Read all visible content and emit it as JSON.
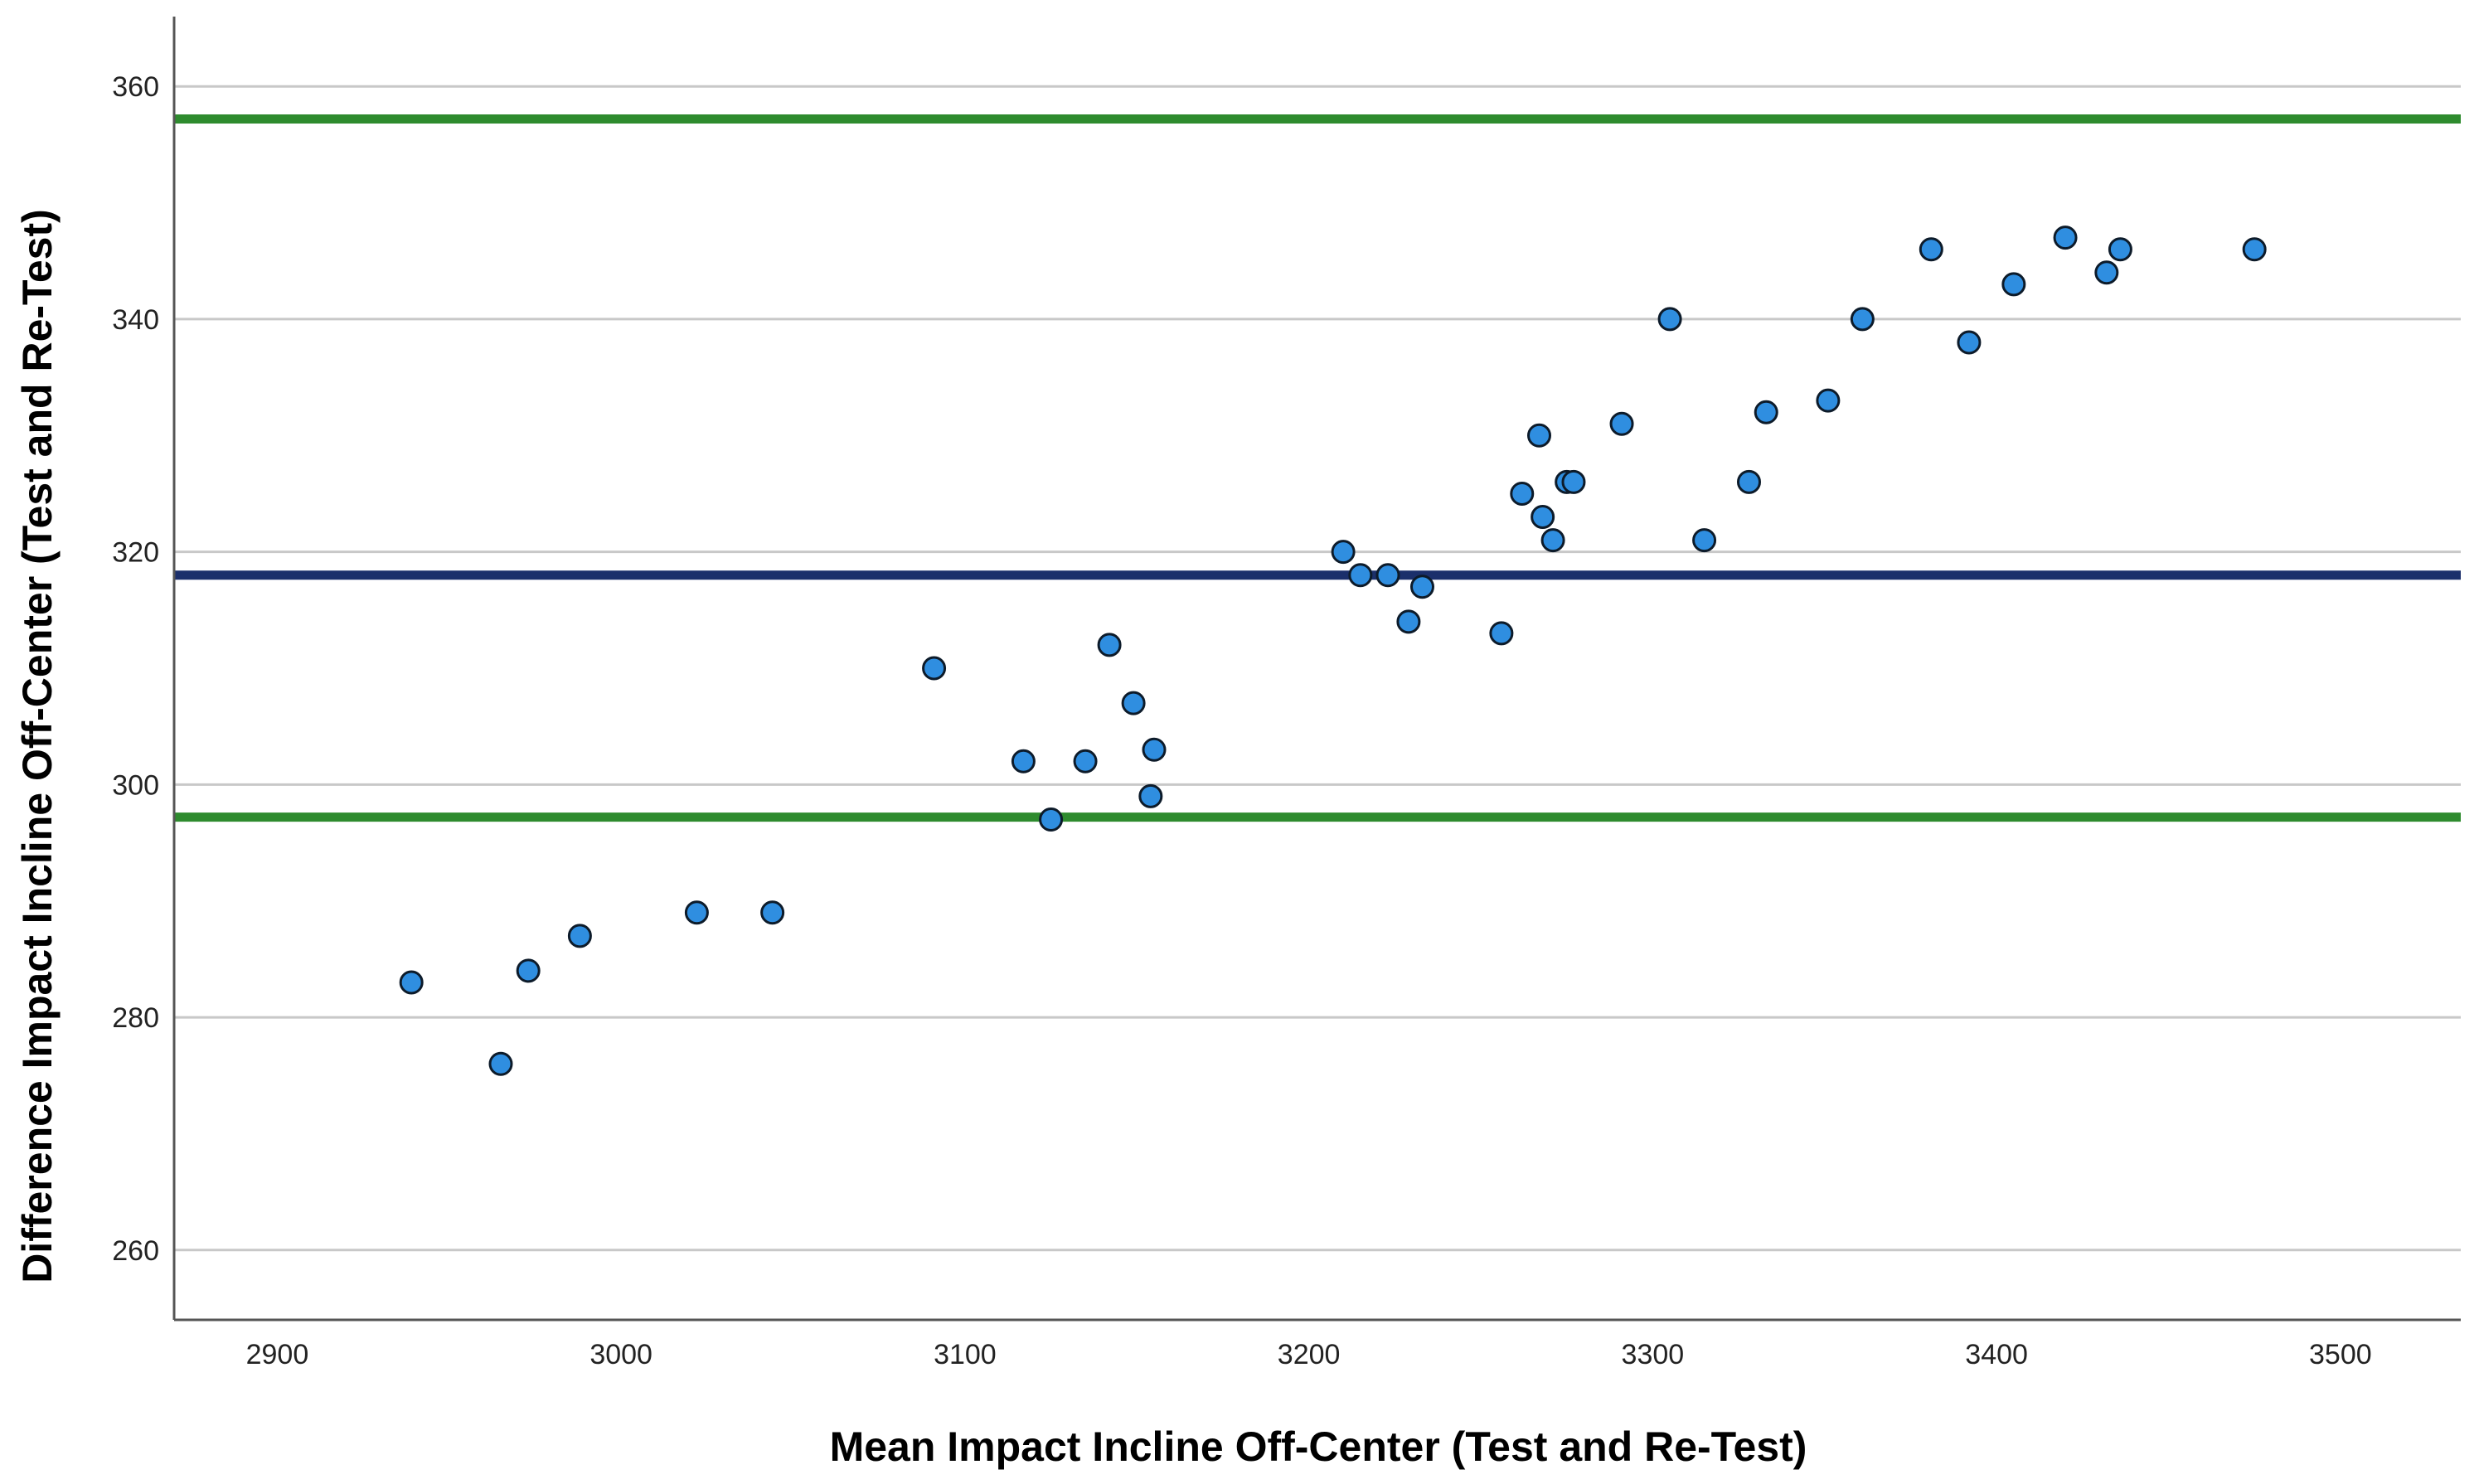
{
  "chart_data": {
    "type": "scatter",
    "title": "",
    "xlabel": "Mean Impact Incline Off-Center (Test and Re-Test)",
    "ylabel": "Difference Impact Incline Off-Center (Test and Re-Test)",
    "xlim": [
      2870,
      3535
    ],
    "ylim": [
      254,
      366
    ],
    "xticks": [
      2900,
      3000,
      3100,
      3200,
      3300,
      3400,
      3500
    ],
    "yticks": [
      260,
      280,
      300,
      320,
      340,
      360
    ],
    "grid": "horizontal",
    "colors": {
      "points": "#2f8ee0",
      "point_edge": "#0d1b2a",
      "mean_line": "#1b2f6b",
      "limit_lines": "#2e8b2e",
      "grid": "#c8c8c8",
      "axis": "#555555"
    },
    "reference_lines": [
      {
        "name": "upper-limit",
        "y": 357.2,
        "color": "#2e8b2e"
      },
      {
        "name": "mean-difference",
        "y": 318.0,
        "color": "#1b2f6b"
      },
      {
        "name": "lower-limit",
        "y": 297.2,
        "color": "#2e8b2e"
      }
    ],
    "points": [
      {
        "x": 2939,
        "y": 283
      },
      {
        "x": 2965,
        "y": 276
      },
      {
        "x": 2973,
        "y": 284
      },
      {
        "x": 2988,
        "y": 287
      },
      {
        "x": 3022,
        "y": 289
      },
      {
        "x": 3044,
        "y": 289
      },
      {
        "x": 3091,
        "y": 310
      },
      {
        "x": 3117,
        "y": 302
      },
      {
        "x": 3125,
        "y": 297
      },
      {
        "x": 3135,
        "y": 302
      },
      {
        "x": 3142,
        "y": 312
      },
      {
        "x": 3149,
        "y": 307
      },
      {
        "x": 3154,
        "y": 299
      },
      {
        "x": 3155,
        "y": 303
      },
      {
        "x": 3210,
        "y": 320
      },
      {
        "x": 3215,
        "y": 318
      },
      {
        "x": 3223,
        "y": 318
      },
      {
        "x": 3229,
        "y": 314
      },
      {
        "x": 3233,
        "y": 317
      },
      {
        "x": 3256,
        "y": 313
      },
      {
        "x": 3262,
        "y": 325
      },
      {
        "x": 3267,
        "y": 330
      },
      {
        "x": 3268,
        "y": 323
      },
      {
        "x": 3271,
        "y": 321
      },
      {
        "x": 3275,
        "y": 326
      },
      {
        "x": 3277,
        "y": 326
      },
      {
        "x": 3291,
        "y": 331
      },
      {
        "x": 3305,
        "y": 340
      },
      {
        "x": 3315,
        "y": 321
      },
      {
        "x": 3328,
        "y": 326
      },
      {
        "x": 3333,
        "y": 332
      },
      {
        "x": 3351,
        "y": 333
      },
      {
        "x": 3361,
        "y": 340
      },
      {
        "x": 3381,
        "y": 346
      },
      {
        "x": 3392,
        "y": 338
      },
      {
        "x": 3405,
        "y": 343
      },
      {
        "x": 3420,
        "y": 347
      },
      {
        "x": 3432,
        "y": 344
      },
      {
        "x": 3436,
        "y": 346
      },
      {
        "x": 3475,
        "y": 346
      }
    ]
  }
}
